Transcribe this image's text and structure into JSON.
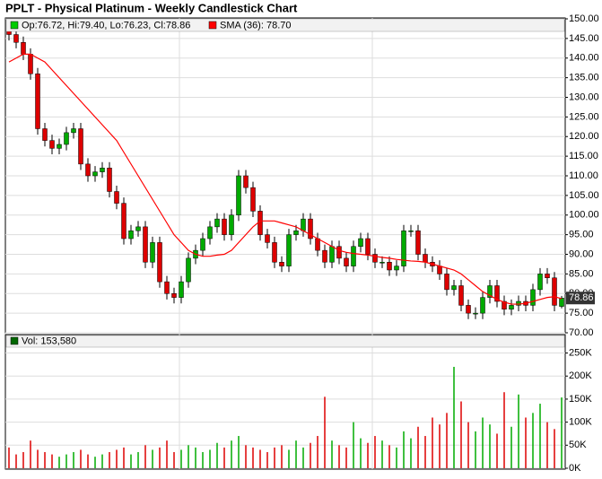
{
  "chart_data": [
    {
      "type": "candlestick",
      "title": "PPLT - Physical Platinum - Weekly Candlestick Chart",
      "legend": "Op:76.72, Hi:79.40, Lo:76.23, Cl:78.86",
      "legend_color": "#00cc00",
      "up_color": "#00aa00",
      "down_color": "#dd0000",
      "open": [
        147,
        146,
        144,
        141,
        136,
        122,
        119,
        117,
        118,
        121,
        122,
        113,
        110,
        111,
        112,
        106,
        103,
        94,
        96,
        97,
        88,
        93,
        83,
        80,
        79,
        83,
        89,
        91,
        94,
        97,
        99,
        95,
        100,
        110,
        107,
        101,
        95,
        93,
        88,
        87,
        95,
        96,
        99,
        94,
        91,
        88,
        92,
        89,
        87,
        92,
        94,
        90,
        88,
        88,
        86,
        87,
        96,
        96,
        90,
        88,
        87,
        85,
        81,
        82,
        77,
        75,
        75,
        79,
        82,
        78,
        76,
        77,
        78,
        77,
        81,
        85,
        84,
        76.72
      ],
      "high": [
        148.5,
        147.5,
        145.5,
        142.5,
        137.5,
        123.5,
        120.5,
        119.5,
        122.5,
        123.5,
        123.5,
        114.5,
        112.5,
        113.5,
        113.5,
        107.5,
        104.5,
        97.5,
        98.5,
        98.5,
        94.5,
        94.5,
        84.5,
        81.5,
        84.5,
        90.5,
        92.5,
        95.5,
        98.5,
        100.5,
        100.5,
        101.5,
        111.5,
        111.5,
        108.5,
        102.5,
        96.5,
        94.5,
        89.5,
        96.5,
        97.5,
        100.5,
        100.5,
        95.5,
        92.5,
        93.5,
        93.5,
        90.5,
        93.5,
        95.5,
        95.5,
        91.5,
        89.5,
        89.5,
        88.5,
        97.5,
        97.5,
        97.5,
        91.5,
        89.5,
        88.5,
        86.5,
        83.5,
        83.5,
        78.5,
        76.5,
        80.5,
        83.5,
        83.5,
        79.5,
        78.5,
        79.5,
        79.5,
        82.5,
        86.5,
        86.5,
        85.5,
        79.4
      ],
      "low": [
        144.5,
        142.5,
        139.5,
        134.5,
        120.5,
        117.5,
        115.5,
        115.5,
        116.5,
        119.5,
        111.5,
        108.5,
        108.5,
        109.5,
        104.5,
        101.5,
        92.5,
        92.5,
        94.5,
        86.5,
        86.5,
        81.5,
        78.5,
        77.5,
        77.5,
        81.5,
        87.5,
        89.5,
        92.5,
        95.5,
        93.5,
        93.5,
        98.5,
        105.5,
        99.5,
        93.5,
        91.5,
        86.5,
        85.5,
        85.5,
        93.5,
        94.5,
        92.5,
        89.5,
        86.5,
        86.5,
        87.5,
        85.5,
        85.5,
        90.5,
        88.5,
        86.5,
        86.5,
        84.5,
        84.5,
        85.5,
        94.5,
        88.5,
        86.5,
        85.5,
        83.5,
        79.5,
        79.5,
        75.5,
        73.5,
        73.5,
        73.5,
        77.5,
        76.5,
        74.5,
        74.5,
        75.5,
        75.5,
        75.5,
        79.5,
        82.5,
        75.5,
        76.23
      ],
      "close": [
        146,
        144,
        141,
        136,
        122,
        119,
        117,
        118,
        121,
        122,
        113,
        110,
        111,
        112,
        106,
        103,
        94,
        96,
        97,
        88,
        93,
        83,
        80,
        79,
        83,
        89,
        91,
        94,
        97,
        99,
        95,
        100,
        110,
        107,
        101,
        95,
        93,
        88,
        87,
        95,
        96,
        99,
        94,
        91,
        88,
        92,
        89,
        87,
        92,
        94,
        90,
        88,
        88,
        86,
        87,
        96,
        96,
        90,
        88,
        87,
        85,
        81,
        82,
        77,
        75,
        75,
        79,
        82,
        78,
        76,
        77,
        78,
        77,
        81,
        85,
        84,
        77,
        78.86
      ],
      "series": [
        {
          "name": "SMA (36): 78.70",
          "color": "#ff0000",
          "values": [
            139,
            140,
            141,
            141,
            140,
            139,
            137,
            135,
            133,
            131,
            129,
            127,
            125,
            123,
            121,
            119,
            116,
            113,
            110,
            107,
            104,
            101,
            98,
            95,
            93,
            91,
            90,
            89.5,
            89.5,
            89.8,
            90,
            91,
            93,
            95,
            97,
            98.5,
            98.5,
            98.5,
            98,
            97.5,
            97,
            96,
            95,
            94,
            93,
            92,
            91,
            90.5,
            90.2,
            90,
            89.8,
            89.5,
            89.2,
            89,
            88.7,
            88.5,
            88.3,
            88.2,
            88,
            87.5,
            87,
            86.5,
            86,
            85,
            83.5,
            82,
            80.5,
            79.5,
            78.5,
            77.8,
            77.3,
            77.3,
            77.5,
            78,
            78.5,
            79,
            79.2,
            78.7
          ]
        }
      ],
      "ylim": [
        70,
        150
      ],
      "yticks": [
        {
          "value": 70,
          "label": "70.00"
        },
        {
          "value": 75,
          "label": "75.00"
        },
        {
          "value": 80,
          "label": "80.00"
        },
        {
          "value": 85,
          "label": "85.00"
        },
        {
          "value": 90,
          "label": "90.00"
        },
        {
          "value": 95,
          "label": "95.00"
        },
        {
          "value": 100,
          "label": "100.00"
        },
        {
          "value": 105,
          "label": "105.00"
        },
        {
          "value": 110,
          "label": "110.00"
        },
        {
          "value": 115,
          "label": "115.00"
        },
        {
          "value": 120,
          "label": "120.00"
        },
        {
          "value": 125,
          "label": "125.00"
        },
        {
          "value": 130,
          "label": "130.00"
        },
        {
          "value": 135,
          "label": "135.00"
        },
        {
          "value": 140,
          "label": "140.00"
        },
        {
          "value": 145,
          "label": "145.00"
        },
        {
          "value": 150,
          "label": "150.00"
        }
      ],
      "grid": true
    },
    {
      "type": "bar",
      "series": [
        {
          "name": "Vol: 153,580",
          "color": "#006600",
          "values": [
            45000,
            30000,
            35000,
            60000,
            40000,
            35000,
            30000,
            25000,
            30000,
            35000,
            40000,
            30000,
            25000,
            30000,
            35000,
            40000,
            45000,
            30000,
            35000,
            50000,
            40000,
            45000,
            60000,
            35000,
            40000,
            50000,
            45000,
            35000,
            40000,
            55000,
            45000,
            60000,
            70000,
            50000,
            45000,
            40000,
            35000,
            45000,
            50000,
            40000,
            60000,
            45000,
            55000,
            70000,
            155000,
            60000,
            50000,
            45000,
            100000,
            65000,
            55000,
            70000,
            60000,
            50000,
            45000,
            80000,
            65000,
            90000,
            70000,
            110000,
            95000,
            120000,
            220000,
            145000,
            100000,
            80000,
            110000,
            95000,
            75000,
            165000,
            90000,
            160000,
            110000,
            120000,
            140000,
            100000,
            85000,
            153580
          ]
        }
      ],
      "ylim": [
        0,
        290000
      ],
      "yticks": [
        {
          "value": 0,
          "label": "0K"
        },
        {
          "value": 50000,
          "label": "50K"
        },
        {
          "value": 100000,
          "label": "100K"
        },
        {
          "value": 150000,
          "label": "150K"
        },
        {
          "value": 200000,
          "label": "200K"
        },
        {
          "value": 250000,
          "label": "250K"
        }
      ],
      "grid": true
    }
  ]
}
